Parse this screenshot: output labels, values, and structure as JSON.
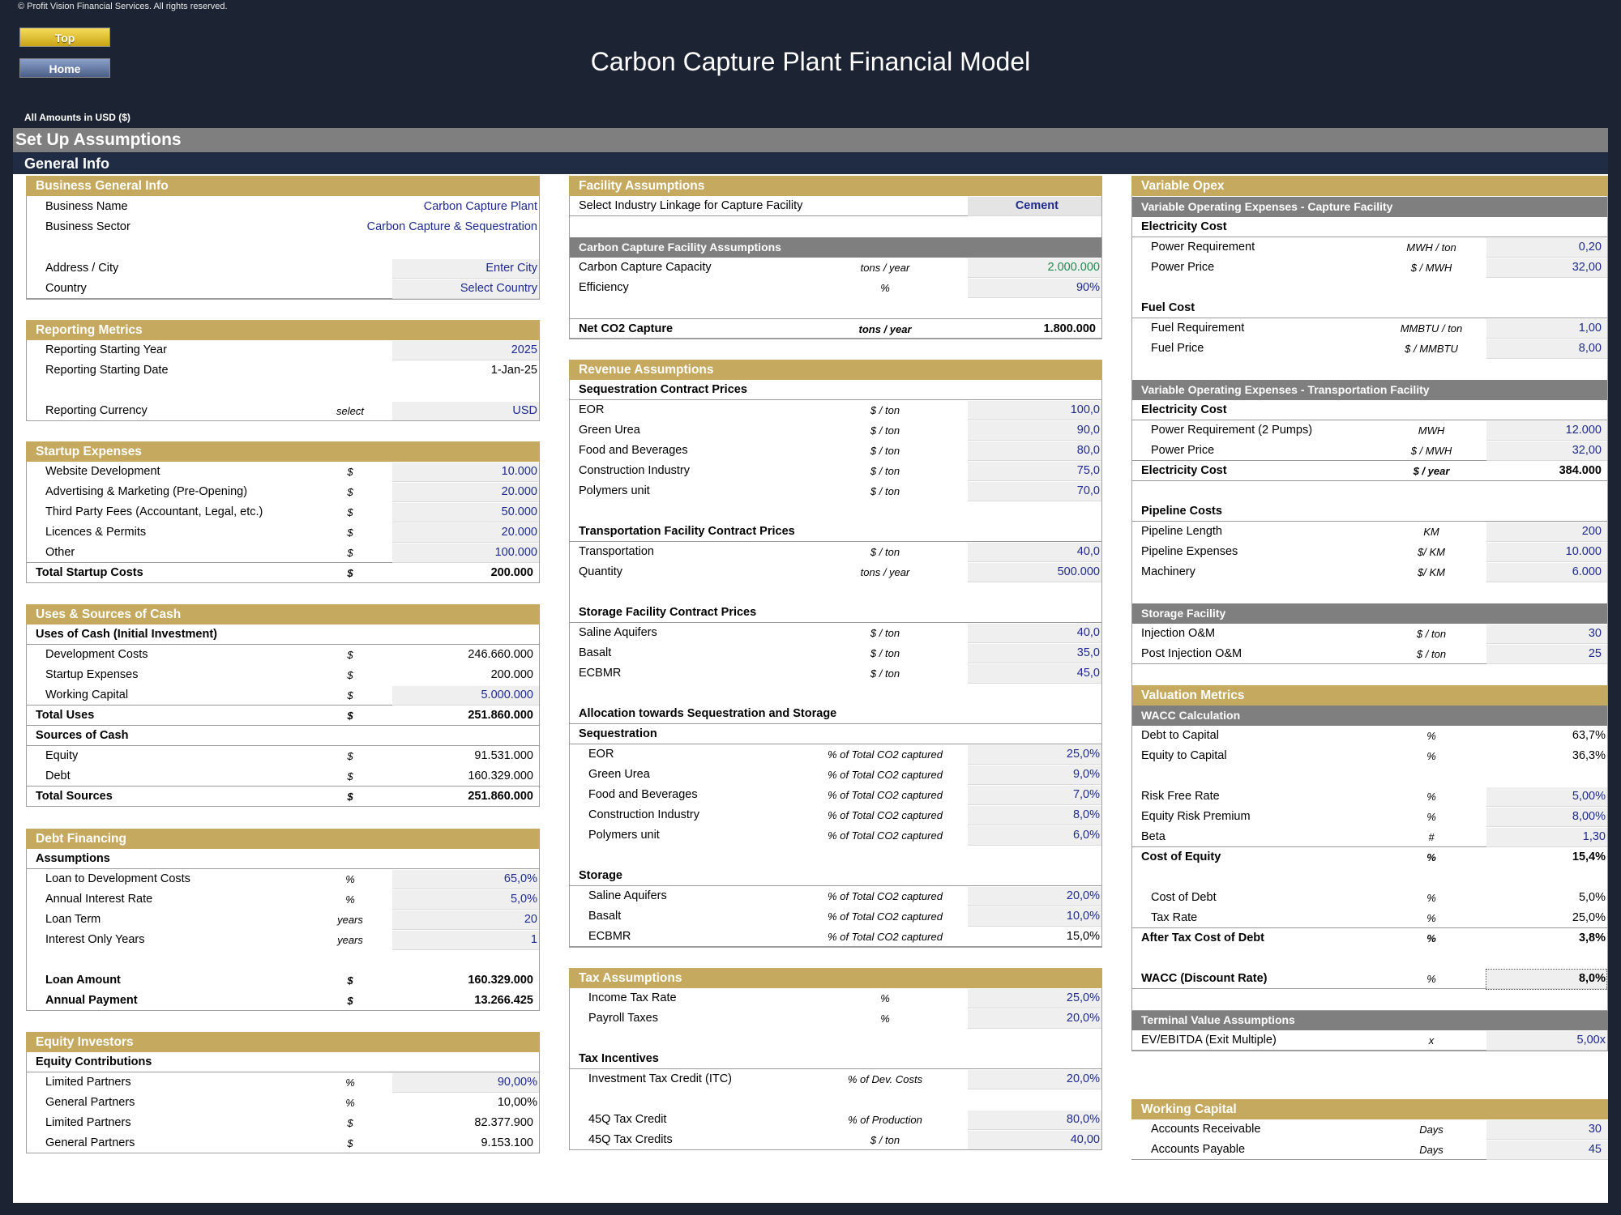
{
  "header": {
    "copyright": "© Profit Vision Financial Services. All rights reserved.",
    "top_label": "Top",
    "home_label": "Home",
    "title": "Carbon Capture Plant Financial Model",
    "amounts": "All Amounts in  USD ($)",
    "setup": "Set Up Assumptions",
    "general": "General Info"
  },
  "left": {
    "business_general": "Business General Info",
    "business_name": {
      "label": "Business Name",
      "value": "Carbon Capture Plant"
    },
    "business_sector": {
      "label": "Business Sector",
      "value": "Carbon Capture & Sequestration"
    },
    "address": {
      "label": "Address / City",
      "value": "Enter City"
    },
    "country": {
      "label": "Country",
      "value": "Select Country"
    },
    "reporting_metrics": "Reporting Metrics",
    "start_year": {
      "label": "Reporting Starting Year",
      "value": "2025"
    },
    "start_date": {
      "label": "Reporting Starting Date",
      "value": "1-Jan-25"
    },
    "currency": {
      "label": "Reporting Currency",
      "unit": "select",
      "value": "USD"
    },
    "startup_expenses": "Startup Expenses",
    "startup_rows": [
      {
        "label": "Website Development",
        "unit": "$",
        "value": "10.000"
      },
      {
        "label": "Advertising & Marketing (Pre-Opening)",
        "unit": "$",
        "value": "20.000"
      },
      {
        "label": "Third Party Fees (Accountant, Legal, etc.)",
        "unit": "$",
        "value": "50.000"
      },
      {
        "label": "Licences & Permits",
        "unit": "$",
        "value": "20.000"
      },
      {
        "label": "Other",
        "unit": "$",
        "value": "100.000"
      }
    ],
    "total_startup": {
      "label": "Total Startup Costs",
      "unit": "$",
      "value": "200.000"
    },
    "uses_sources": "Uses & Sources of Cash",
    "uses_header": "Uses of Cash (Initial Investment)",
    "uses_rows": [
      {
        "label": "Development Costs",
        "unit": "$",
        "value": "246.660.000"
      },
      {
        "label": "Startup Expenses",
        "unit": "$",
        "value": "200.000"
      },
      {
        "label": "Working Capital",
        "unit": "$",
        "value": "5.000.000"
      }
    ],
    "total_uses": {
      "label": "Total Uses",
      "unit": "$",
      "value": "251.860.000"
    },
    "sources_header": "Sources of Cash",
    "sources_rows": [
      {
        "label": "Equity",
        "unit": "$",
        "value": "91.531.000"
      },
      {
        "label": "Debt",
        "unit": "$",
        "value": "160.329.000"
      }
    ],
    "total_sources": {
      "label": "Total Sources",
      "unit": "$",
      "value": "251.860.000"
    },
    "debt_financing": "Debt Financing",
    "assumptions_header": "Assumptions",
    "debt_rows": [
      {
        "label": "Loan to Development Costs",
        "unit": "%",
        "value": "65,0%"
      },
      {
        "label": "Annual Interest Rate",
        "unit": "%",
        "value": "5,0%"
      },
      {
        "label": "Loan Term",
        "unit": "years",
        "value": "20"
      },
      {
        "label": "Interest Only Years",
        "unit": "years",
        "value": "1"
      }
    ],
    "loan_amount": {
      "label": "Loan Amount",
      "unit": "$",
      "value": "160.329.000"
    },
    "annual_payment": {
      "label": "Annual Payment",
      "unit": "$",
      "value": "13.266.425"
    },
    "equity_investors": "Equity Investors",
    "equity_contrib": "Equity Contributions",
    "equity_rows": [
      {
        "label": "Limited Partners",
        "unit": "%",
        "value": "90,00%"
      },
      {
        "label": "General Partners",
        "unit": "%",
        "value": "10,00%"
      },
      {
        "label": "Limited Partners",
        "unit": "$",
        "value": "82.377.900"
      },
      {
        "label": "General Partners",
        "unit": "$",
        "value": "9.153.100"
      }
    ]
  },
  "mid": {
    "facility": "Facility Assumptions",
    "industry_link": {
      "label": "Select Industry Linkage for Capture Facility",
      "value": "Cement"
    },
    "capture_assumptions": "Carbon Capture Facility Assumptions",
    "capacity": {
      "label": "Carbon Capture Capacity",
      "unit": "tons / year",
      "value": "2.000.000"
    },
    "efficiency": {
      "label": "Efficiency",
      "unit": "%",
      "value": "90%"
    },
    "net_capture": {
      "label": "Net CO2 Capture",
      "unit": "tons / year",
      "value": "1.800.000"
    },
    "revenue": "Revenue Assumptions",
    "seq_prices": "Sequestration Contract Prices",
    "seq_rows": [
      {
        "label": "EOR",
        "unit": "$ / ton",
        "value": "100,0"
      },
      {
        "label": "Green Urea",
        "unit": "$ / ton",
        "value": "90,0"
      },
      {
        "label": "Food and Beverages",
        "unit": "$ / ton",
        "value": "80,0"
      },
      {
        "label": "Construction Industry",
        "unit": "$ / ton",
        "value": "75,0"
      },
      {
        "label": "Polymers unit",
        "unit": "$ / ton",
        "value": "70,0"
      }
    ],
    "trans_prices": "Transportation Facility Contract Prices",
    "trans_rows": [
      {
        "label": "Transportation",
        "unit": "$ / ton",
        "value": "40,0"
      },
      {
        "label": "Quantity",
        "unit": "tons / year",
        "value": "500.000"
      }
    ],
    "storage_prices": "Storage Facility Contract Prices",
    "storage_rows": [
      {
        "label": "Saline Aquifers",
        "unit": "$ / ton",
        "value": "40,0"
      },
      {
        "label": "Basalt",
        "unit": "$ / ton",
        "value": "35,0"
      },
      {
        "label": "ECBMR",
        "unit": "$ / ton",
        "value": "45,0"
      }
    ],
    "allocation": "Allocation towards Sequestration and Storage",
    "sequestration": "Sequestration",
    "alloc_seq_rows": [
      {
        "label": "EOR",
        "unit": "% of Total CO2 captured",
        "value": "25,0%"
      },
      {
        "label": "Green Urea",
        "unit": "% of Total CO2 captured",
        "value": "9,0%"
      },
      {
        "label": "Food and Beverages",
        "unit": "% of Total CO2 captured",
        "value": "7,0%"
      },
      {
        "label": "Construction Industry",
        "unit": "% of Total CO2 captured",
        "value": "8,0%"
      },
      {
        "label": "Polymers unit",
        "unit": "% of Total CO2 captured",
        "value": "6,0%"
      }
    ],
    "storage": "Storage",
    "alloc_storage_rows": [
      {
        "label": "Saline Aquifers",
        "unit": "% of Total CO2 captured",
        "value": "20,0%"
      },
      {
        "label": "Basalt",
        "unit": "% of Total CO2 captured",
        "value": "10,0%"
      },
      {
        "label": "ECBMR",
        "unit": "% of Total CO2 captured",
        "value": "15,0%"
      }
    ],
    "tax": "Tax Assumptions",
    "tax_rows": [
      {
        "label": "Income Tax Rate",
        "unit": "%",
        "value": "25,0%"
      },
      {
        "label": "Payroll Taxes",
        "unit": "%",
        "value": "20,0%"
      }
    ],
    "tax_incentives": "Tax Incentives",
    "itc": {
      "label": "Investment Tax Credit (ITC)",
      "unit": "% of Dev. Costs",
      "value": "20,0%"
    },
    "credit_45q": {
      "label": "45Q Tax Credit",
      "unit": "% of Production",
      "value": "80,0%"
    },
    "credits_45q": {
      "label": "45Q Tax Credits",
      "unit": "$ / ton",
      "value": "40,00"
    }
  },
  "right": {
    "variable_opex": "Variable Opex",
    "vo_capture": "Variable Operating Expenses - Capture Facility",
    "electricity_cost": "Electricity Cost",
    "power_req": {
      "label": "Power Requirement",
      "unit": "MWH / ton",
      "value": "0,20"
    },
    "power_price": {
      "label": "Power Price",
      "unit": "$ / MWH",
      "value": "32,00"
    },
    "fuel_cost": "Fuel Cost",
    "fuel_req": {
      "label": "Fuel Requirement",
      "unit": "MMBTU / ton",
      "value": "1,00"
    },
    "fuel_price": {
      "label": "Fuel Price",
      "unit": "$ / MMBTU",
      "value": "8,00"
    },
    "vo_transport": "Variable Operating Expenses - Transportation Facility",
    "electricity_cost2": "Electricity Cost",
    "power_req2": {
      "label": "Power Requirement (2 Pumps)",
      "unit": "MWH",
      "value": "12.000"
    },
    "power_price2": {
      "label": "Power Price",
      "unit": "$ / MWH",
      "value": "32,00"
    },
    "elec_total": {
      "label": "Electricity Cost",
      "unit": "$ / year",
      "value": "384.000"
    },
    "pipeline_costs": "Pipeline Costs",
    "pipeline_rows": [
      {
        "label": "Pipeline Length",
        "unit": "KM",
        "value": "200"
      },
      {
        "label": "Pipeline Expenses",
        "unit": "$/ KM",
        "value": "10.000"
      },
      {
        "label": "Machinery",
        "unit": "$/ KM",
        "value": "6.000"
      }
    ],
    "storage_facility": "Storage Facility",
    "storage_rows": [
      {
        "label": "Injection O&M",
        "unit": "$ / ton",
        "value": "30"
      },
      {
        "label": "Post Injection O&M",
        "unit": "$ / ton",
        "value": "25"
      }
    ],
    "valuation": "Valuation Metrics",
    "wacc_calc": "WACC Calculation",
    "debt_cap": {
      "label": "Debt to Capital",
      "unit": "%",
      "value": "63,7%"
    },
    "equity_cap": {
      "label": "Equity to Capital",
      "unit": "%",
      "value": "36,3%"
    },
    "risk_free": {
      "label": "Risk Free Rate",
      "unit": "%",
      "value": "5,00%"
    },
    "erp": {
      "label": "Equity Risk Premium",
      "unit": "%",
      "value": "8,00%"
    },
    "beta": {
      "label": "Beta",
      "unit": "#",
      "value": "1,30"
    },
    "cost_equity": {
      "label": "Cost of Equity",
      "unit": "%",
      "value": "15,4%"
    },
    "cost_debt": {
      "label": "Cost of Debt",
      "unit": "%",
      "value": "5,0%"
    },
    "tax_rate": {
      "label": "Tax Rate",
      "unit": "%",
      "value": "25,0%"
    },
    "after_tax": {
      "label": "After Tax Cost of Debt",
      "unit": "%",
      "value": "3,8%"
    },
    "wacc": {
      "label": "WACC (Discount Rate)",
      "unit": "%",
      "value": "8,0%"
    },
    "terminal": "Terminal Value Assumptions",
    "ev_ebitda": {
      "label": "EV/EBITDA (Exit Multiple)",
      "unit": "x",
      "value": "5,00x"
    },
    "working_capital": "Working Capital",
    "wc_rows": [
      {
        "label": "Accounts Receivable",
        "unit": "Days",
        "value": "30"
      },
      {
        "label": "Accounts Payable",
        "unit": "Days",
        "value": "45"
      }
    ]
  }
}
